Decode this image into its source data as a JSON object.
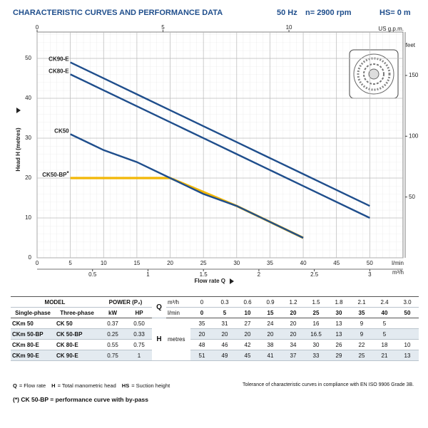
{
  "chart_data": {
    "type": "line",
    "title": "CHARACTERISTIC CURVES AND PERFORMANCE DATA",
    "frequency": "50 Hz",
    "speed": "n= 2900 rpm",
    "suction": "HS= 0 m",
    "x": [
      5,
      10,
      15,
      20,
      25,
      30,
      35,
      40,
      50
    ],
    "xlim": [
      0,
      55
    ],
    "xticks": [
      0,
      5,
      10,
      15,
      20,
      25,
      30,
      35,
      40,
      45,
      50
    ],
    "xunit": "l/min",
    "xlabel": "Flow rate Q",
    "x2lim": [
      0,
      14.53
    ],
    "x2ticks": [
      0,
      5,
      10
    ],
    "x2unit": "US g.p.m.",
    "x3lim": [
      0,
      3.3
    ],
    "x3ticks": [
      0.5,
      1,
      1.5,
      2,
      2.5,
      3
    ],
    "x3unit": "m³/h",
    "ylim": [
      0,
      56.6
    ],
    "yticks": [
      0,
      10,
      20,
      30,
      40,
      50
    ],
    "ylabel": "Head H  (metres)",
    "y2lim": [
      0,
      185.7
    ],
    "y2ticks": [
      50,
      100,
      150
    ],
    "y2unit": "feet",
    "grid": true,
    "series": [
      {
        "name": "CK90-E",
        "color": "#1f4e8c",
        "values": [
          49,
          45,
          41,
          37,
          33,
          29,
          25,
          21,
          13
        ]
      },
      {
        "name": "CK80-E",
        "color": "#1f4e8c",
        "values": [
          46,
          42,
          38,
          34,
          30,
          26,
          22,
          18,
          10
        ]
      },
      {
        "name": "CK50-BP",
        "color": "#f2b705",
        "marker": "*",
        "values": [
          20,
          20,
          20,
          20,
          16.5,
          13,
          9,
          5,
          null
        ]
      },
      {
        "name": "CK50",
        "color": "#1f4e8c",
        "values": [
          31,
          27,
          24,
          20,
          16,
          13,
          9,
          5,
          null
        ]
      }
    ]
  },
  "table": {
    "header": {
      "model": "MODEL",
      "power": "POWER (P₂)",
      "q": "Q",
      "q_unit1": "m³/h",
      "q_unit2": "l/min",
      "single": "Single-phase",
      "three": "Three-phase",
      "kw": "kW",
      "hp": "HP",
      "h": "H",
      "h_unit": "metres"
    },
    "m3h": [
      "0",
      "0.3",
      "0.6",
      "0.9",
      "1.2",
      "1.5",
      "1.8",
      "2.1",
      "2.4",
      "3.0"
    ],
    "lmin": [
      "0",
      "5",
      "10",
      "15",
      "20",
      "25",
      "30",
      "35",
      "40",
      "50"
    ],
    "rows": [
      {
        "single": "CKm 50",
        "three": "CK 50",
        "kw": "0.37",
        "hp": "0.50",
        "h": [
          "35",
          "31",
          "27",
          "24",
          "20",
          "16",
          "13",
          "9",
          "5",
          null
        ]
      },
      {
        "single": "CKm 50-BP",
        "three": "CK 50-BP",
        "kw": "0.25",
        "hp": "0.33",
        "h": [
          "20",
          "20",
          "20",
          "20",
          "20",
          "16.5",
          "13",
          "9",
          "5",
          null
        ]
      },
      {
        "single": "CKm 80-E",
        "three": "CK 80-E",
        "kw": "0.55",
        "hp": "0.75",
        "h": [
          "48",
          "46",
          "42",
          "38",
          "34",
          "30",
          "26",
          "22",
          "18",
          "10"
        ]
      },
      {
        "single": "CKm 90-E",
        "three": "CK 90-E",
        "kw": "0.75",
        "hp": "1",
        "h": [
          "51",
          "49",
          "45",
          "41",
          "37",
          "33",
          "29",
          "25",
          "21",
          "13"
        ]
      }
    ]
  },
  "notes": {
    "legend": [
      {
        "key": "Q",
        "text": "= Flow rate"
      },
      {
        "key": "H",
        "text": "= Total manometric head"
      },
      {
        "key": "HS",
        "text": "= Suction height"
      }
    ],
    "tolerance": "Tolerance of characteristic curves in compliance with EN ISO 9906 Grade 3B.",
    "bypass": "(*) CK 50-BP = performance curve with by-pass"
  }
}
